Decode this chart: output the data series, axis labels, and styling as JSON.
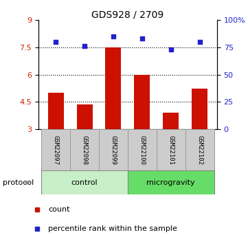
{
  "title": "GDS928 / 2709",
  "samples": [
    "GSM22097",
    "GSM22098",
    "GSM22099",
    "GSM22100",
    "GSM22101",
    "GSM22102"
  ],
  "red_values": [
    5.0,
    4.35,
    7.5,
    5.97,
    3.9,
    5.25
  ],
  "blue_values": [
    80,
    76,
    85,
    83,
    73,
    80
  ],
  "ylim_left": [
    3,
    9
  ],
  "ylim_right": [
    0,
    100
  ],
  "yticks_left": [
    3,
    4.5,
    6,
    7.5,
    9
  ],
  "yticks_right": [
    0,
    25,
    50,
    75,
    100
  ],
  "ytick_labels_left": [
    "3",
    "4.5",
    "6",
    "7.5",
    "9"
  ],
  "ytick_labels_right": [
    "0",
    "25",
    "50",
    "75",
    "100%"
  ],
  "hlines": [
    4.5,
    6.0,
    7.5
  ],
  "groups": [
    {
      "label": "control",
      "start": 0,
      "end": 3,
      "color": "#c8f0c8"
    },
    {
      "label": "microgravity",
      "start": 3,
      "end": 6,
      "color": "#66dd66"
    }
  ],
  "bar_color": "#cc1100",
  "dot_color": "#2222cc",
  "bar_bottom": 3,
  "protocol_label": "protocol",
  "legend_items": [
    {
      "color": "#cc1100",
      "label": "count"
    },
    {
      "color": "#2222cc",
      "label": "percentile rank within the sample"
    }
  ],
  "tick_label_color_left": "#cc2200",
  "tick_label_color_right": "#2222cc"
}
